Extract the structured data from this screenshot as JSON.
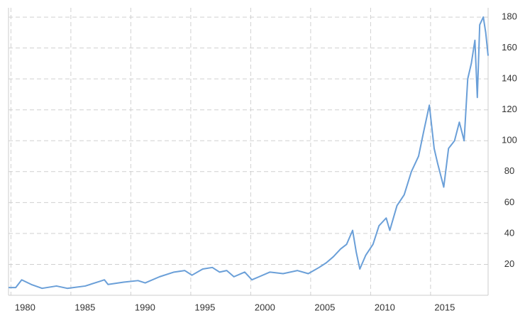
{
  "chart_data": {
    "type": "line",
    "x": [
      1979.8,
      1980.4,
      1980.9,
      1981.7,
      1982.6,
      1983.8,
      1984.7,
      1986.2,
      1987.4,
      1987.8,
      1988.1,
      1989.4,
      1990.6,
      1991.2,
      1992.4,
      1993.6,
      1994.5,
      1995.1,
      1996.0,
      1996.8,
      1997.4,
      1998.0,
      1998.6,
      1999.5,
      2000.1,
      2000.7,
      2001.6,
      2002.7,
      2003.9,
      2004.8,
      2005.7,
      2006.3,
      2006.9,
      2007.5,
      2008.0,
      2008.5,
      2008.8,
      2009.1,
      2009.6,
      2010.2,
      2010.7,
      2011.3,
      2011.6,
      2012.2,
      2012.8,
      2013.4,
      2014.0,
      2014.4,
      2014.9,
      2015.3,
      2015.6,
      2016.1,
      2016.5,
      2017.0,
      2017.4,
      2017.8,
      2018.1,
      2018.4,
      2018.7,
      2018.9,
      2019.1,
      2019.4,
      2019.6,
      2019.8
    ],
    "series": [
      {
        "color": "#6a9fd8",
        "values": [
          5,
          5,
          10,
          7,
          4.5,
          6,
          4.5,
          6,
          9,
          10,
          7,
          8.5,
          9.5,
          8,
          12,
          15,
          16,
          13,
          17,
          18,
          15,
          16,
          12,
          15,
          10,
          12,
          15,
          14,
          16,
          14,
          18,
          21,
          25,
          30,
          33,
          42,
          28,
          17,
          26,
          33,
          45,
          50,
          42,
          58,
          65,
          80,
          90,
          105,
          123,
          95,
          85,
          70,
          95,
          100,
          112,
          100,
          140,
          150,
          165,
          128,
          175,
          180,
          170,
          155
        ]
      }
    ],
    "xlim": [
      1979.8,
      2019.8
    ],
    "xticks": [
      1980,
      1985,
      1990,
      1995,
      2000,
      2005,
      2010,
      2015
    ],
    "ylim": [
      0,
      186
    ],
    "yticks": [
      20,
      40,
      60,
      80,
      100,
      120,
      140,
      160,
      180
    ],
    "grid": true
  }
}
